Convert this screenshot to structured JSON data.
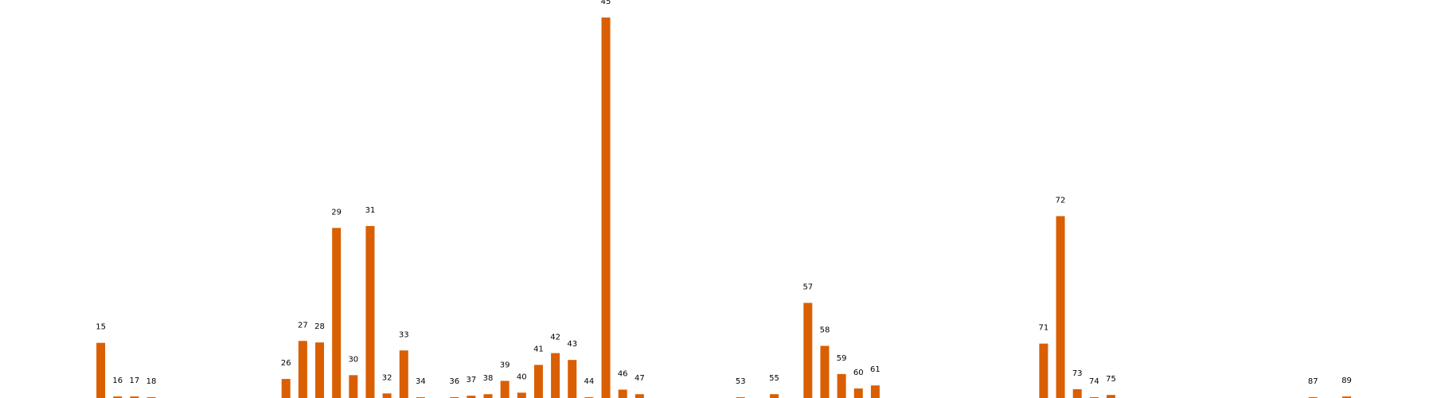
{
  "chart_data": {
    "type": "bar",
    "title": "",
    "xlabel": "",
    "ylabel": "",
    "grid": false,
    "bar_color": "#D95F02",
    "x_domain": [
      11,
      92
    ],
    "ylim": [
      0,
      1.06
    ],
    "bars": [
      {
        "label": "15",
        "x": 15,
        "value": 0.145
      },
      {
        "label": "16",
        "x": 16,
        "value": 0.004
      },
      {
        "label": "17",
        "x": 17,
        "value": 0.004
      },
      {
        "label": "18",
        "x": 18,
        "value": 0.002
      },
      {
        "label": "26",
        "x": 26,
        "value": 0.05
      },
      {
        "label": "27",
        "x": 27,
        "value": 0.15
      },
      {
        "label": "28",
        "x": 28,
        "value": 0.146
      },
      {
        "label": "29",
        "x": 29,
        "value": 0.447
      },
      {
        "label": "30",
        "x": 30,
        "value": 0.06
      },
      {
        "label": "31",
        "x": 31,
        "value": 0.452
      },
      {
        "label": "32",
        "x": 32,
        "value": 0.012
      },
      {
        "label": "33",
        "x": 33,
        "value": 0.125
      },
      {
        "label": "34",
        "x": 34,
        "value": 0.002
      },
      {
        "label": "36",
        "x": 36,
        "value": 0.002
      },
      {
        "label": "37",
        "x": 37,
        "value": 0.006
      },
      {
        "label": "38",
        "x": 38,
        "value": 0.01
      },
      {
        "label": "39",
        "x": 39,
        "value": 0.045
      },
      {
        "label": "40",
        "x": 40,
        "value": 0.014
      },
      {
        "label": "41",
        "x": 41,
        "value": 0.087
      },
      {
        "label": "42",
        "x": 42,
        "value": 0.118
      },
      {
        "label": "43",
        "x": 43,
        "value": 0.1
      },
      {
        "label": "44",
        "x": 44,
        "value": 0.002
      },
      {
        "label": "45",
        "x": 45,
        "value": 1.0
      },
      {
        "label": "46",
        "x": 46,
        "value": 0.022
      },
      {
        "label": "47",
        "x": 47,
        "value": 0.01
      },
      {
        "label": "53",
        "x": 53,
        "value": 0.002
      },
      {
        "label": "55",
        "x": 55,
        "value": 0.01
      },
      {
        "label": "57",
        "x": 57,
        "value": 0.25
      },
      {
        "label": "58",
        "x": 58,
        "value": 0.137
      },
      {
        "label": "59",
        "x": 59,
        "value": 0.063
      },
      {
        "label": "60",
        "x": 60,
        "value": 0.025
      },
      {
        "label": "61",
        "x": 61,
        "value": 0.033
      },
      {
        "label": "71",
        "x": 71,
        "value": 0.143
      },
      {
        "label": "72",
        "x": 72,
        "value": 0.478
      },
      {
        "label": "73",
        "x": 73,
        "value": 0.023
      },
      {
        "label": "74",
        "x": 74,
        "value": 0.002
      },
      {
        "label": "75",
        "x": 75,
        "value": 0.008
      },
      {
        "label": "87",
        "x": 87,
        "value": 0.002
      },
      {
        "label": "89",
        "x": 89,
        "value": 0.004
      }
    ]
  }
}
